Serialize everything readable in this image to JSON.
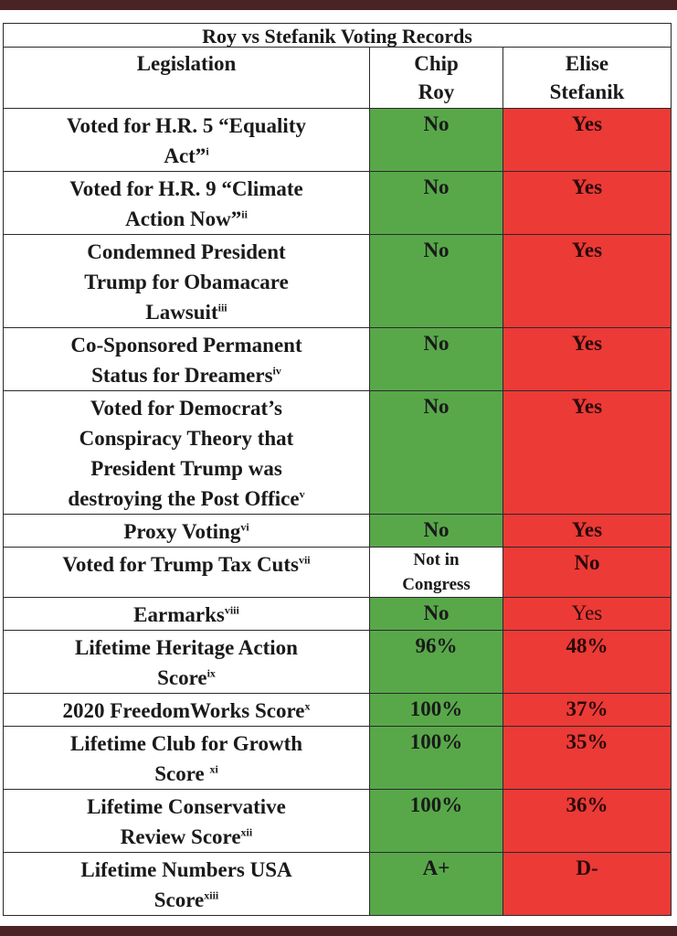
{
  "table": {
    "title": "Roy vs Stefanik Voting Records",
    "headers": {
      "legislation": "Legislation",
      "roy": [
        "Chip",
        "Roy"
      ],
      "stefanik": [
        "Elise",
        "Stefanik"
      ]
    },
    "rows": [
      {
        "lines": [
          "Voted for H.R. 5 “Equality",
          "Act”"
        ],
        "sup": "i",
        "roy": "No",
        "stefanik": "Yes",
        "roy_color": "green",
        "stefanik_color": "red"
      },
      {
        "lines": [
          "Voted for H.R. 9 “Climate",
          "Action Now”"
        ],
        "sup": "ii",
        "roy": "No",
        "stefanik": "Yes",
        "roy_color": "green",
        "stefanik_color": "red"
      },
      {
        "lines": [
          "Condemned President",
          "Trump for Obamacare",
          "Lawsuit"
        ],
        "sup": "iii",
        "roy": "No",
        "stefanik": "Yes",
        "roy_color": "green",
        "stefanik_color": "red"
      },
      {
        "lines": [
          "Co-Sponsored Permanent",
          "Status for Dreamers"
        ],
        "sup": "iv",
        "roy": "No",
        "stefanik": "Yes",
        "roy_color": "green",
        "stefanik_color": "red"
      },
      {
        "lines": [
          "Voted for Democrat’s",
          "Conspiracy Theory that",
          "President Trump was",
          "destroying the Post Office"
        ],
        "sup": "v",
        "roy": "No",
        "stefanik": "Yes",
        "roy_color": "green",
        "stefanik_color": "red"
      },
      {
        "lines": [
          "Proxy Voting"
        ],
        "sup": "vi",
        "roy": "No",
        "stefanik": "Yes",
        "roy_color": "green",
        "stefanik_color": "red"
      },
      {
        "lines": [
          "Voted for Trump Tax Cuts"
        ],
        "sup": "vii",
        "roy": "Not in Congress",
        "stefanik": "No",
        "roy_color": "white",
        "stefanik_color": "red"
      },
      {
        "lines": [
          "Earmarks"
        ],
        "sup": "viii",
        "roy": "No",
        "stefanik": "Yes",
        "roy_color": "green",
        "stefanik_color": "red"
      },
      {
        "lines": [
          "Lifetime Heritage Action",
          "Score"
        ],
        "sup": "ix",
        "roy": "96%",
        "stefanik": "48%",
        "roy_color": "green",
        "stefanik_color": "red"
      },
      {
        "lines": [
          "2020 FreedomWorks Score"
        ],
        "sup": "x",
        "roy": "100%",
        "stefanik": "37%",
        "roy_color": "green",
        "stefanik_color": "red"
      },
      {
        "lines": [
          "Lifetime Club for Growth",
          "Score "
        ],
        "sup": "xi",
        "roy": "100%",
        "stefanik": "35%",
        "roy_color": "green",
        "stefanik_color": "red"
      },
      {
        "lines": [
          "Lifetime Conservative",
          "Review Score"
        ],
        "sup": "xii",
        "roy": "100%",
        "stefanik": "36%",
        "roy_color": "green",
        "stefanik_color": "red"
      },
      {
        "lines": [
          "Lifetime Numbers USA",
          "Score"
        ],
        "sup": "xiii",
        "roy": "A+",
        "stefanik": "D-",
        "roy_color": "green",
        "stefanik_color": "red"
      }
    ],
    "colors": {
      "green": "#58a84a",
      "red": "#ec3a36",
      "white": "#ffffff",
      "frame": "#4a2424"
    }
  }
}
